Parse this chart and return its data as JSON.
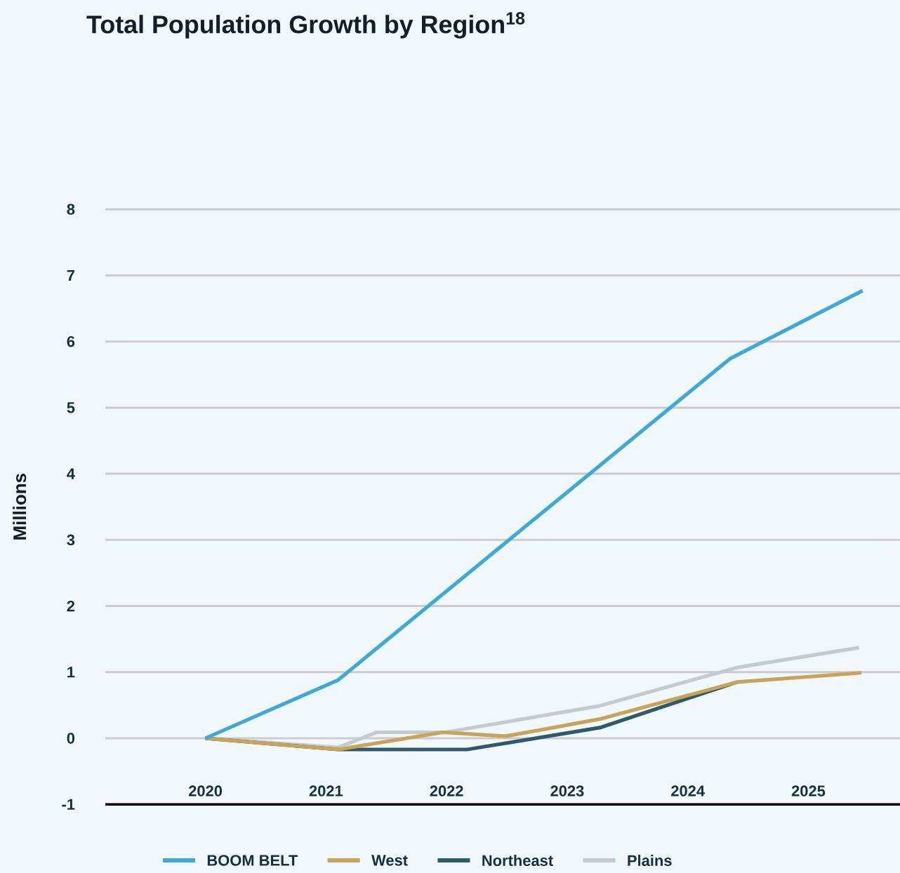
{
  "chart_data": {
    "type": "line",
    "title": "Total Population Growth by Region$^{18}$",
    "ylabel": "Millions",
    "xlim": [
      2019.17,
      2025.76
    ],
    "xticks": [
      2020,
      2021,
      2022,
      2023,
      2024,
      2025
    ],
    "ylim": [
      -1,
      8
    ],
    "yticks": [
      -1,
      0,
      1,
      2,
      3,
      4,
      5,
      6,
      7,
      8
    ],
    "grid": "y",
    "legend": "bottom",
    "marker": "none",
    "line_style": "solid",
    "series": [
      {
        "name": "BOOM BELT",
        "color": "#3fa9d4",
        "x": [
          2020,
          2021.1,
          2024.35,
          2025.45
        ],
        "values": [
          0,
          0.88,
          5.74,
          6.77
        ]
      },
      {
        "name": "West",
        "color": "#c9a35a",
        "x": [
          2020,
          2021.1,
          2021.97,
          2022.49,
          2023.27,
          2024.41,
          2025.44
        ],
        "values": [
          0,
          -0.17,
          0.09,
          0.03,
          0.29,
          0.85,
          0.99
        ]
      },
      {
        "name": "Northeast",
        "color": "#2e5a6b",
        "x": [
          2020,
          2021.1,
          2022.17,
          2023.27,
          2024.41
        ],
        "values": [
          0,
          -0.17,
          -0.17,
          0.16,
          0.85
        ]
      },
      {
        "name": "Plains",
        "color": "#c3cbcf",
        "x": [
          2020,
          2021.1,
          2021.42,
          2021.99,
          2023.27,
          2024.41,
          2025.42
        ],
        "values": [
          0,
          -0.14,
          0.09,
          0.09,
          0.49,
          1.07,
          1.37
        ]
      }
    ]
  }
}
